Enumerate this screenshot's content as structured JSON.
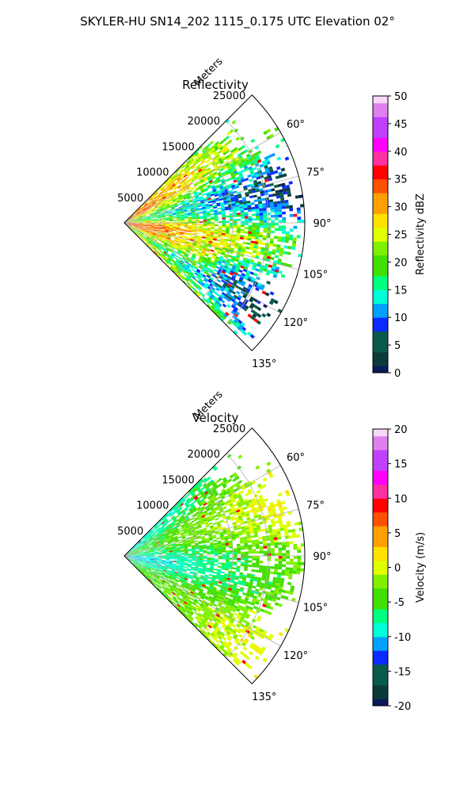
{
  "figure": {
    "suptitle": "SKYLER-HU  SN14_202  1115_0.175 UTC Elevation 02°"
  },
  "chart_data": [
    {
      "type": "heatmap",
      "panel": "top",
      "title": "Reflectivity",
      "radial_label": "Meters",
      "radial_ticks": [
        5000,
        10000,
        15000,
        20000,
        25000
      ],
      "radial_tick_labels": [
        "5000",
        "10000",
        "15000",
        "20000",
        "25000"
      ],
      "rlim": [
        0,
        25000
      ],
      "angle_ticks": [
        60,
        75,
        90,
        105,
        120,
        135
      ],
      "angle_tick_labels": [
        "60°",
        "75°",
        "90°",
        "105°",
        "120°",
        "135°"
      ],
      "azimuth_range_deg": [
        45,
        135
      ],
      "grid": true,
      "colorbar": {
        "label": "Reflectivity dBZ",
        "range": [
          0,
          50
        ],
        "ticks": [
          0,
          5,
          10,
          15,
          20,
          25,
          30,
          35,
          40,
          45,
          50
        ],
        "tick_labels": [
          "0",
          "5",
          "10",
          "15",
          "20",
          "25",
          "30",
          "35",
          "40",
          "45",
          "50"
        ]
      }
    },
    {
      "type": "heatmap",
      "panel": "bottom",
      "title": "Velocity",
      "radial_label": "Meters",
      "radial_ticks": [
        5000,
        10000,
        15000,
        20000,
        25000
      ],
      "radial_tick_labels": [
        "5000",
        "10000",
        "15000",
        "20000",
        "25000"
      ],
      "rlim": [
        0,
        25000
      ],
      "angle_ticks": [
        60,
        75,
        90,
        105,
        120,
        135
      ],
      "angle_tick_labels": [
        "60°",
        "75°",
        "90°",
        "105°",
        "120°",
        "135°"
      ],
      "azimuth_range_deg": [
        45,
        135
      ],
      "grid": true,
      "colorbar": {
        "label": "Velocity (m/s)",
        "range": [
          -20,
          20
        ],
        "ticks": [
          -20,
          -15,
          -10,
          -5,
          0,
          5,
          10,
          15,
          20
        ],
        "tick_labels": [
          "-20",
          "-15",
          "-10",
          "-5",
          "0",
          "5",
          "10",
          "15",
          "20"
        ]
      }
    }
  ],
  "colors": {
    "colormap": [
      "#0a1a5a",
      "#0a3a3a",
      "#0a5a4a",
      "#0a2aff",
      "#00a0ff",
      "#00ffd8",
      "#00ff80",
      "#40e000",
      "#80f000",
      "#e0ff00",
      "#ffe000",
      "#ffa000",
      "#ff5000",
      "#ff0000",
      "#ff30a0",
      "#ff00ff",
      "#c040ff",
      "#e080f0",
      "#f8d8f8"
    ],
    "grid": "#b0b0b0",
    "frame": "#000000"
  }
}
